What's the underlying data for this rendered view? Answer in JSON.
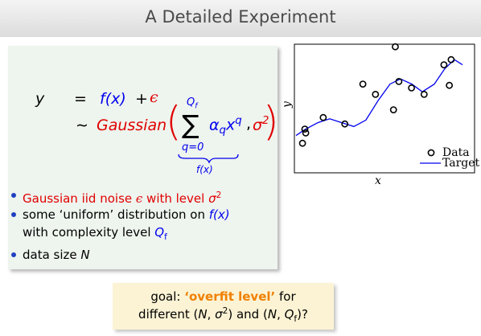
{
  "header": {
    "title": "A Detailed Experiment"
  },
  "equation": {
    "lhs": "y",
    "eq": "=",
    "f": "f(x)",
    "plus": "+",
    "eps": "ϵ",
    "sim": "∼",
    "dist": "Gaussian",
    "open": "(",
    "sum": "∑",
    "sum_upper": [
      "Q",
      "f"
    ],
    "sum_lower": "q=0",
    "summand": [
      "α",
      "q",
      "x",
      "q"
    ],
    "comma": ",",
    "sigma": [
      "σ",
      "2"
    ],
    "close": ")",
    "underbrace_label": "f(x)"
  },
  "bullets": [
    [
      {
        "text": "Gaussian iid noise ",
        "color": "red"
      },
      {
        "text": "ϵ",
        "color": "red",
        "style": "serif"
      },
      {
        "text": " with level ",
        "color": "red"
      },
      {
        "text": "σ",
        "color": "red",
        "style": "italic"
      },
      {
        "text": "2",
        "color": "red",
        "style": "sup"
      }
    ],
    [
      {
        "text": "some ‘uniform’ distribution on "
      },
      {
        "text": "f(x)",
        "color": "blue",
        "style": "italic"
      },
      {
        "text": " with complexity level "
      },
      {
        "text": "Q",
        "color": "blue",
        "style": "italic"
      },
      {
        "text": "f",
        "color": "blue",
        "style": "sub"
      }
    ],
    [
      {
        "text": "data size "
      },
      {
        "text": "N",
        "style": "italic"
      }
    ]
  ],
  "goal": [
    [
      {
        "text": "goal: "
      },
      {
        "text": "‘overfit level’",
        "color": "orange",
        "style": "bold"
      },
      {
        "text": " for"
      }
    ],
    [
      {
        "text": "different ("
      },
      {
        "text": "N",
        "style": "italic"
      },
      {
        "text": ", "
      },
      {
        "text": "σ",
        "style": "italic"
      },
      {
        "text": "2",
        "style": "sup"
      },
      {
        "text": ") and ("
      },
      {
        "text": "N",
        "style": "italic"
      },
      {
        "text": ", "
      },
      {
        "text": "Q",
        "style": "italic"
      },
      {
        "text": "f",
        "style": "sub"
      },
      {
        "text": ")?"
      }
    ]
  ],
  "plot": {
    "type": "scatter",
    "xlabel": "x",
    "ylabel": "y",
    "xlim": [
      0,
      1
    ],
    "ylim": [
      0,
      1
    ],
    "data": {
      "name": "Data",
      "x": [
        0.045,
        0.058,
        0.063,
        0.16,
        0.28,
        0.38,
        0.45,
        0.56,
        0.55,
        0.58,
        0.65,
        0.72,
        0.83,
        0.87,
        0.86
      ],
      "y": [
        0.23,
        0.34,
        0.31,
        0.43,
        0.38,
        0.69,
        0.61,
        0.98,
        0.49,
        0.71,
        0.66,
        0.61,
        0.84,
        0.88,
        0.68
      ]
    },
    "target": {
      "name": "Target",
      "color": "#0000ee",
      "x": [
        0.009,
        0.063,
        0.13,
        0.196,
        0.263,
        0.33,
        0.397,
        0.464,
        0.531,
        0.589,
        0.652,
        0.71,
        0.777,
        0.835,
        0.888,
        0.933
      ],
      "y": [
        0.29,
        0.34,
        0.39,
        0.42,
        0.39,
        0.36,
        0.41,
        0.56,
        0.69,
        0.73,
        0.69,
        0.63,
        0.69,
        0.81,
        0.88,
        0.84
      ]
    }
  }
}
